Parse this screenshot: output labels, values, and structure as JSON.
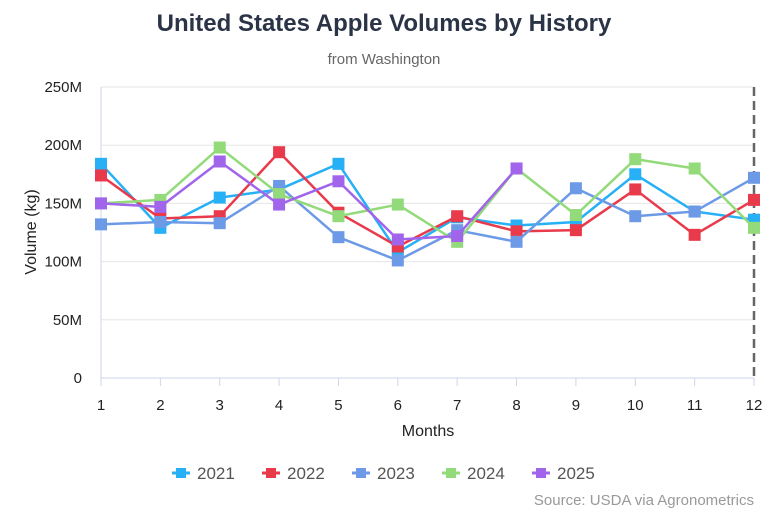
{
  "chart_data": {
    "type": "line",
    "title": "United States Apple Volumes by History",
    "subtitle": "from Washington",
    "xlabel": "Months",
    "ylabel": "Volume (kg)",
    "x": [
      1,
      2,
      3,
      4,
      5,
      6,
      7,
      8,
      9,
      10,
      11,
      12
    ],
    "x_tick_labels": [
      "1",
      "2",
      "3",
      "4",
      "5",
      "6",
      "7",
      "8",
      "9",
      "10",
      "11",
      "12"
    ],
    "ylim": [
      0,
      250000000
    ],
    "y_ticks": [
      0,
      50000000,
      100000000,
      150000000,
      200000000,
      250000000
    ],
    "y_tick_labels": [
      "0",
      "50M",
      "100M",
      "150M",
      "200M",
      "250M"
    ],
    "grid": true,
    "legend_position": "bottom",
    "marker": "square",
    "annotation": "dashed vertical line at month 12",
    "series": [
      {
        "name": "2021",
        "color": "#27b0f5",
        "values": [
          184000000,
          129000000,
          155000000,
          162000000,
          184000000,
          108000000,
          138000000,
          131000000,
          134000000,
          175000000,
          143000000,
          136000000
        ]
      },
      {
        "name": "2022",
        "color": "#e83a4a",
        "values": [
          174000000,
          137000000,
          139000000,
          194000000,
          142000000,
          113000000,
          139000000,
          126000000,
          127000000,
          162000000,
          123000000,
          153000000
        ]
      },
      {
        "name": "2023",
        "color": "#6d9ae6",
        "values": [
          132000000,
          134000000,
          133000000,
          165000000,
          121000000,
          101000000,
          127000000,
          117000000,
          163000000,
          139000000,
          143000000,
          172000000
        ]
      },
      {
        "name": "2024",
        "color": "#93da7a",
        "values": [
          150000000,
          153000000,
          198000000,
          158000000,
          139000000,
          149000000,
          117000000,
          180000000,
          140000000,
          188000000,
          180000000,
          129000000
        ]
      },
      {
        "name": "2025",
        "color": "#a165ec",
        "values": [
          150000000,
          147000000,
          186000000,
          149000000,
          169000000,
          119000000,
          122000000,
          180000000,
          null,
          null,
          null,
          null
        ]
      }
    ]
  },
  "source": "Source: USDA via Agronometrics"
}
